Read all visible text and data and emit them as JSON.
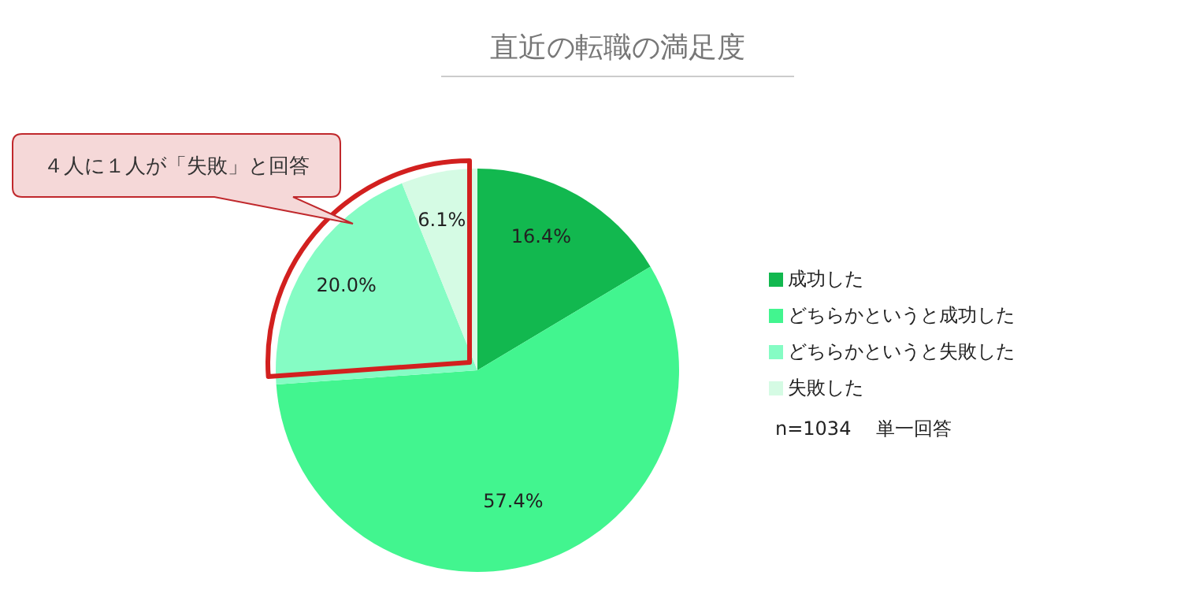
{
  "chart_data": {
    "type": "pie",
    "title": "直近の転職の満足度",
    "categories": [
      "成功した",
      "どちらかというと成功した",
      "どちらかというと失敗した",
      "失敗した"
    ],
    "values": [
      16.4,
      57.4,
      20.0,
      6.1
    ],
    "value_labels": [
      "16.4%",
      "57.4%",
      "20.0%",
      "6.1%"
    ],
    "colors": [
      "#12b84f",
      "#42f58f",
      "#85fcc4",
      "#d5fbe4"
    ],
    "legend": "right",
    "annotations": [
      "４人に１人が「失敗」と回答",
      "n=1034　 単一回答"
    ]
  }
}
